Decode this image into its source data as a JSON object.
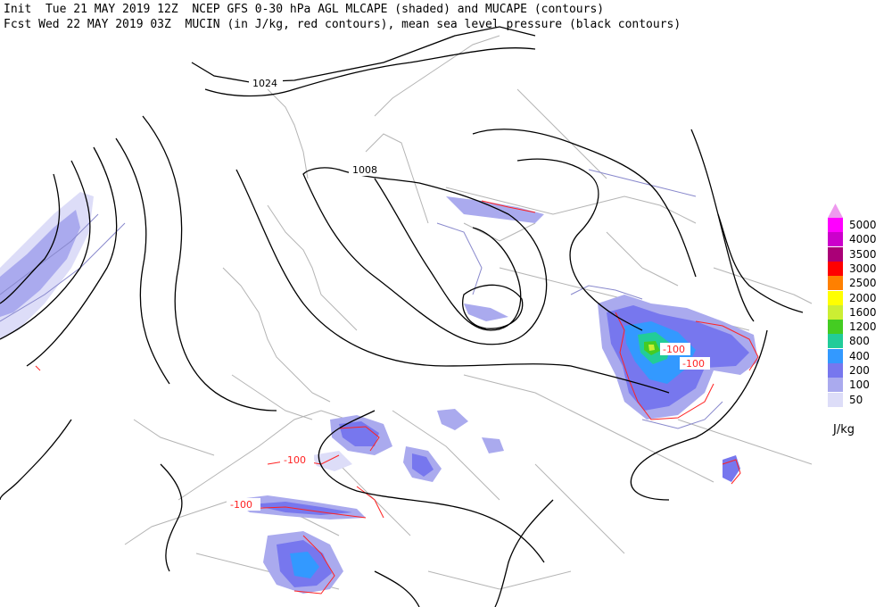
{
  "header": {
    "line1": "Init  Tue 21 MAY 2019 12Z  NCEP GFS 0-30 hPa AGL MLCAPE (shaded) and MUCAPE (contours)",
    "line2": "Fcst Wed 22 MAY 2019 03Z  MUCIN (in J/kg, red contours), mean sea level pressure (black contours)"
  },
  "legend": {
    "items": [
      {
        "label": "5000",
        "color": "#ff00ff"
      },
      {
        "label": "4000",
        "color": "#cc00cc"
      },
      {
        "label": "3500",
        "color": "#aa0077"
      },
      {
        "label": "3000",
        "color": "#ff0000"
      },
      {
        "label": "2500",
        "color": "#ff8000"
      },
      {
        "label": "2000",
        "color": "#ffff00"
      },
      {
        "label": "1600",
        "color": "#ccee33"
      },
      {
        "label": "1200",
        "color": "#44cc22"
      },
      {
        "label": "800",
        "color": "#22cc99"
      },
      {
        "label": "400",
        "color": "#3399ff"
      },
      {
        "label": "200",
        "color": "#7777ee"
      },
      {
        "label": "100",
        "color": "#aaaaee"
      },
      {
        "label": "50",
        "color": "#ddddf8"
      }
    ],
    "units": "J/kg"
  },
  "isobar_labels": {
    "high": "1024",
    "low": "1008"
  },
  "cin_labels": [
    "-100",
    "-100",
    "-100",
    "-100"
  ],
  "colors": {
    "isobar": "#000000",
    "cin": "#ff2222",
    "coast": "#b0b0b0",
    "mucape": "#8888cc"
  }
}
